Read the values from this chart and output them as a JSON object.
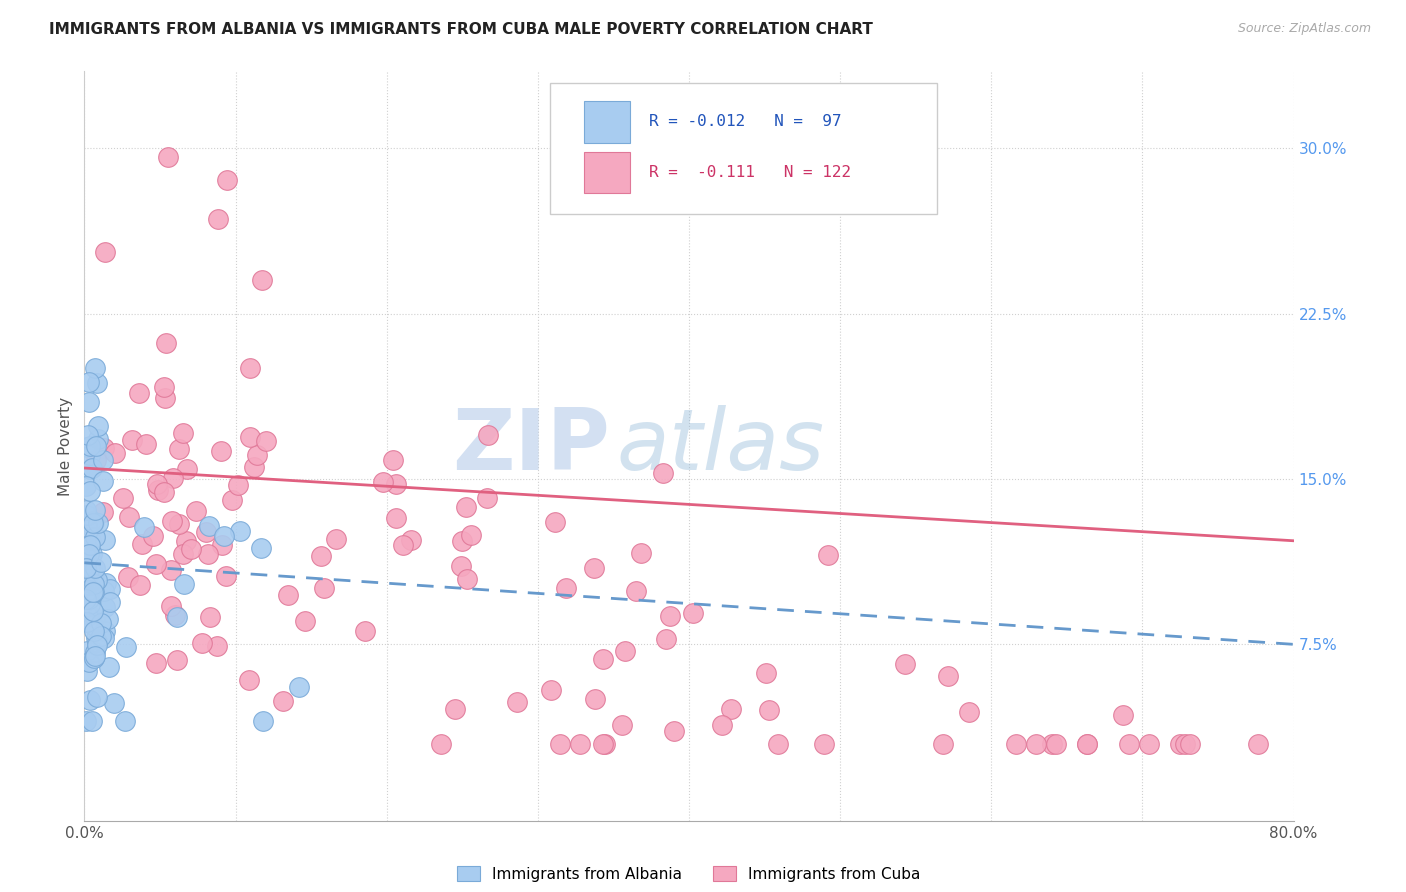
{
  "title": "IMMIGRANTS FROM ALBANIA VS IMMIGRANTS FROM CUBA MALE POVERTY CORRELATION CHART",
  "source": "Source: ZipAtlas.com",
  "ylabel": "Male Poverty",
  "xlim": [
    0.0,
    0.8
  ],
  "ylim": [
    -0.005,
    0.335
  ],
  "ytick_positions": [
    0.075,
    0.15,
    0.225,
    0.3
  ],
  "ytick_labels": [
    "7.5%",
    "15.0%",
    "22.5%",
    "30.0%"
  ],
  "albania_color": "#A8CCF0",
  "cuba_color": "#F5A8C0",
  "albania_edge": "#7AAAD8",
  "cuba_edge": "#E07898",
  "albania_line_color": "#6699CC",
  "cuba_line_color": "#E06080",
  "albania_R": -0.012,
  "albania_N": 97,
  "cuba_R": -0.111,
  "cuba_N": 122,
  "legend_label_albania": "Immigrants from Albania",
  "legend_label_cuba": "Immigrants from Cuba",
  "watermark_zip": "ZIP",
  "watermark_atlas": "atlas",
  "grid_color": "#D0D0D0",
  "background_color": "#FFFFFF",
  "albania_trend_x0": 0.0,
  "albania_trend_y0": 0.112,
  "albania_trend_x1": 0.8,
  "albania_trend_y1": 0.075,
  "cuba_trend_x0": 0.0,
  "cuba_trend_y0": 0.155,
  "cuba_trend_x1": 0.8,
  "cuba_trend_y1": 0.122
}
